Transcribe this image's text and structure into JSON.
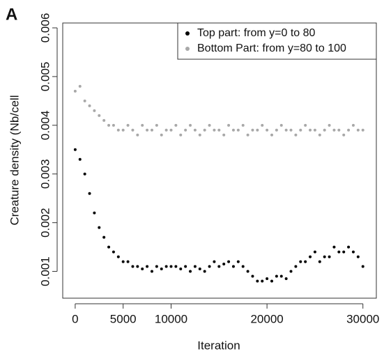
{
  "chart_data": {
    "type": "scatter",
    "panel_label": "A",
    "x_label": "Iteration",
    "y_label": "Creature density (Nb/cell",
    "xlim": [
      -1300,
      31400
    ],
    "ylim": [
      0.00045,
      0.0061
    ],
    "xticks": [
      0,
      5000,
      10000,
      20000,
      30000
    ],
    "yticks": [
      0.001,
      0.002,
      0.003,
      0.004,
      0.005,
      0.006
    ],
    "legend_position": "topright",
    "x": [
      0,
      500,
      1000,
      1500,
      2000,
      2500,
      3000,
      3500,
      4000,
      4500,
      5000,
      5500,
      6000,
      6500,
      7000,
      7500,
      8000,
      8500,
      9000,
      9500,
      10000,
      10500,
      11000,
      11500,
      12000,
      12500,
      13000,
      13500,
      14000,
      14500,
      15000,
      15500,
      16000,
      16500,
      17000,
      17500,
      18000,
      18500,
      19000,
      19500,
      20000,
      20500,
      21000,
      21500,
      22000,
      22500,
      23000,
      23500,
      24000,
      24500,
      25000,
      25500,
      26000,
      26500,
      27000,
      27500,
      28000,
      28500,
      29000,
      29500,
      30000
    ],
    "series": [
      {
        "name": "Top part: from y=0 to 80",
        "color": "#000000",
        "values": [
          0.0035,
          0.0033,
          0.003,
          0.0026,
          0.0022,
          0.0019,
          0.0017,
          0.0015,
          0.0014,
          0.0013,
          0.0012,
          0.0012,
          0.0011,
          0.0011,
          0.00105,
          0.0011,
          0.001,
          0.0011,
          0.00105,
          0.0011,
          0.0011,
          0.0011,
          0.00105,
          0.0011,
          0.001,
          0.0011,
          0.00105,
          0.001,
          0.0011,
          0.0012,
          0.0011,
          0.00115,
          0.0012,
          0.0011,
          0.0012,
          0.0011,
          0.001,
          0.0009,
          0.0008,
          0.0008,
          0.00085,
          0.0008,
          0.0009,
          0.0009,
          0.00085,
          0.001,
          0.0011,
          0.0012,
          0.0012,
          0.0013,
          0.0014,
          0.0012,
          0.0013,
          0.0013,
          0.0015,
          0.0014,
          0.0014,
          0.0015,
          0.0014,
          0.0013,
          0.0011
        ]
      },
      {
        "name": "Bottom Part: from y=80 to 100",
        "color": "#a8a8a8",
        "values": [
          0.0047,
          0.0048,
          0.0045,
          0.0044,
          0.0043,
          0.0042,
          0.0041,
          0.004,
          0.004,
          0.0039,
          0.0039,
          0.004,
          0.0039,
          0.0038,
          0.004,
          0.0039,
          0.0039,
          0.004,
          0.0038,
          0.0039,
          0.0039,
          0.004,
          0.0038,
          0.0039,
          0.004,
          0.0039,
          0.0038,
          0.0039,
          0.004,
          0.0039,
          0.0039,
          0.0038,
          0.004,
          0.0039,
          0.0039,
          0.004,
          0.0038,
          0.0039,
          0.0039,
          0.004,
          0.0039,
          0.0038,
          0.0039,
          0.004,
          0.0039,
          0.0039,
          0.0038,
          0.0039,
          0.004,
          0.0039,
          0.0039,
          0.0038,
          0.0039,
          0.004,
          0.0039,
          0.0039,
          0.0038,
          0.0039,
          0.004,
          0.0039,
          0.0039
        ]
      }
    ]
  }
}
